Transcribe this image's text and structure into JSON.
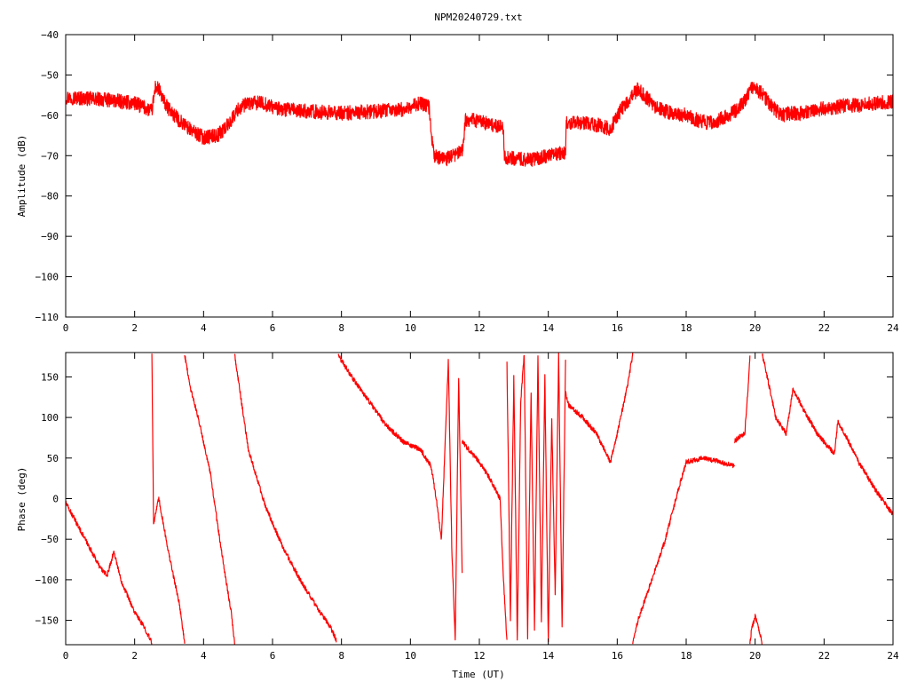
{
  "title": "NPM20240729.txt",
  "colors": {
    "series": "#ff0000",
    "axis": "#000000",
    "background": "#ffffff"
  },
  "chart_data": [
    {
      "type": "line",
      "name": "amplitude",
      "xlabel": "",
      "ylabel": "Amplitude (dB)",
      "xlim": [
        0,
        24
      ],
      "ylim": [
        -110,
        -40
      ],
      "xticks": [
        "0",
        "2",
        "4",
        "6",
        "8",
        "10",
        "12",
        "14",
        "16",
        "18",
        "20",
        "22",
        "24"
      ],
      "yticks": [
        "−40",
        "−50",
        "−60",
        "−70",
        "−80",
        "−90",
        "−100",
        "−110"
      ],
      "grid": false,
      "noise_band": 1.8,
      "series": [
        {
          "x": [
            0,
            0.5,
            1.0,
            1.5,
            2.0,
            2.4,
            2.5,
            2.6,
            2.7,
            2.9,
            3.2,
            3.6,
            4.0,
            4.4,
            4.7,
            5.0,
            5.3,
            5.7,
            6.2,
            7.0,
            8.0,
            9.0,
            9.8,
            10.3,
            10.55,
            10.62,
            10.7,
            11.0,
            11.5,
            11.6,
            11.7,
            12.0,
            12.7,
            12.72,
            13.5,
            14.5,
            14.52,
            15.0,
            15.5,
            15.8,
            16.0,
            16.3,
            16.6,
            16.9,
            17.2,
            17.6,
            18.0,
            18.4,
            18.8,
            19.2,
            19.5,
            19.8,
            19.9,
            20.2,
            20.5,
            20.8,
            21.0,
            21.3,
            21.8,
            22.3,
            22.6,
            23.0,
            23.5,
            24.0
          ],
          "y": [
            -55.5,
            -55.8,
            -56.0,
            -56.5,
            -57.0,
            -58.5,
            -59.0,
            -53.0,
            -53.5,
            -57.5,
            -60.5,
            -63.5,
            -65.5,
            -65.0,
            -62.5,
            -58.5,
            -57.0,
            -57.0,
            -58.5,
            -59.0,
            -59.5,
            -59.0,
            -58.5,
            -57.0,
            -58.0,
            -66.0,
            -70.0,
            -71.0,
            -69.0,
            -61.0,
            -61.0,
            -61.5,
            -63.0,
            -70.5,
            -71.0,
            -69.0,
            -62.0,
            -62.0,
            -62.5,
            -63.5,
            -60.0,
            -56.5,
            -53.5,
            -56.0,
            -58.5,
            -59.5,
            -60.0,
            -61.5,
            -62.0,
            -60.0,
            -58.5,
            -55.0,
            -53.0,
            -54.5,
            -58.0,
            -60.0,
            -59.5,
            -59.5,
            -58.5,
            -58.0,
            -57.5,
            -57.5,
            -57.0,
            -56.5
          ]
        }
      ]
    },
    {
      "type": "line",
      "name": "phase",
      "xlabel": "Time (UT)",
      "ylabel": "Phase (deg)",
      "xlim": [
        0,
        24
      ],
      "ylim": [
        -180,
        180
      ],
      "xticks": [
        "0",
        "2",
        "4",
        "6",
        "8",
        "10",
        "12",
        "14",
        "16",
        "18",
        "20",
        "22",
        "24"
      ],
      "yticks": [
        "150",
        "100",
        "50",
        "0",
        "−50",
        "−100",
        "−150"
      ],
      "grid": false,
      "noise_band": 3,
      "series": [
        {
          "x": [
            0,
            0.5,
            1.0,
            1.2,
            1.4,
            1.6,
            2.0,
            2.3,
            2.5
          ],
          "y": [
            -5,
            -45,
            -85,
            -95,
            -65,
            -100,
            -140,
            -160,
            -178
          ]
        },
        {
          "x": [
            2.5,
            2.55,
            2.7,
            3.0,
            3.3,
            3.45
          ],
          "y": [
            180,
            -30,
            0,
            -70,
            -130,
            -178
          ]
        },
        {
          "x": [
            3.45,
            3.6,
            3.9,
            4.2,
            4.5,
            4.8,
            4.9
          ],
          "y": [
            178,
            140,
            90,
            30,
            -60,
            -140,
            -178
          ]
        },
        {
          "x": [
            4.9,
            5.3,
            5.8,
            6.3,
            6.8,
            7.3,
            7.7,
            7.85
          ],
          "y": [
            178,
            60,
            -10,
            -60,
            -100,
            -135,
            -160,
            -175
          ]
        },
        {
          "x": [
            7.9,
            8.0,
            8.3,
            8.8,
            9.3,
            9.8,
            10.3,
            10.6
          ],
          "y": [
            178,
            170,
            150,
            120,
            90,
            70,
            60,
            40
          ]
        },
        {
          "x": [
            10.6,
            10.75,
            10.9,
            11.0,
            11.1,
            11.2,
            11.3,
            11.4,
            11.5
          ],
          "y": [
            40,
            0,
            -50,
            60,
            170,
            -60,
            -175,
            150,
            -90
          ]
        },
        {
          "x": [
            11.5,
            11.7,
            12.0,
            12.3,
            12.6,
            12.7,
            12.8
          ],
          "y": [
            70,
            60,
            45,
            25,
            0,
            -100,
            -175
          ]
        },
        {
          "x": [
            12.8,
            12.9,
            13.0,
            13.1,
            13.2,
            13.3,
            13.4,
            13.5,
            13.6,
            13.7,
            13.8,
            13.9,
            14.0,
            14.1,
            14.2,
            14.3,
            14.4,
            14.5
          ],
          "y": [
            170,
            -150,
            150,
            -175,
            120,
            178,
            -170,
            130,
            -160,
            175,
            -150,
            150,
            -178,
            100,
            -120,
            178,
            -160,
            170
          ]
        },
        {
          "x": [
            14.5,
            14.6,
            15.0,
            15.4,
            15.8,
            16.0,
            16.3,
            16.45
          ],
          "y": [
            130,
            115,
            100,
            80,
            45,
            80,
            140,
            178
          ]
        },
        {
          "x": [
            16.45,
            16.6,
            17.0,
            17.4,
            17.7,
            18.0,
            18.5,
            19.0,
            19.4
          ],
          "y": [
            -178,
            -150,
            -100,
            -50,
            0,
            45,
            50,
            45,
            40
          ]
        },
        {
          "x": [
            19.4,
            19.5,
            19.7,
            19.8,
            19.85
          ],
          "y": [
            70,
            75,
            80,
            140,
            178
          ]
        },
        {
          "x": [
            19.85,
            19.9,
            20.0,
            20.1,
            20.2
          ],
          "y": [
            -178,
            -160,
            -145,
            -160,
            -178
          ]
        },
        {
          "x": [
            20.2,
            20.3,
            20.6,
            20.9,
            21.1,
            21.4,
            21.8,
            22.3,
            22.4,
            22.6,
            23.0,
            23.5,
            24.0
          ],
          "y": [
            178,
            160,
            100,
            80,
            135,
            110,
            80,
            55,
            95,
            80,
            45,
            10,
            -20
          ]
        }
      ]
    }
  ]
}
